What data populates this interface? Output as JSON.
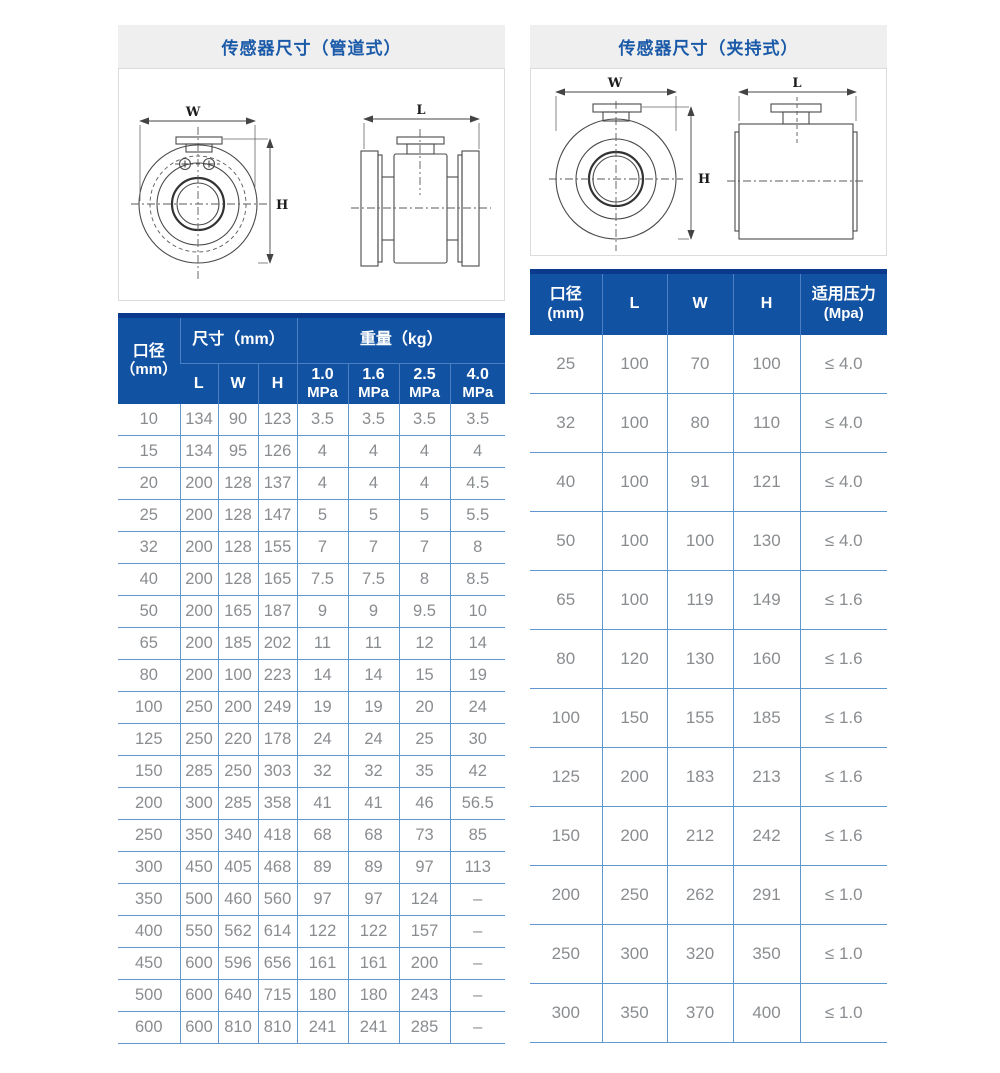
{
  "colors": {
    "header_blue": "#1252a2",
    "header_dark_strip": "#0b3a8c",
    "table_border_blue": "#6097cf",
    "header_cell_border": "#4c80c2",
    "body_text_gray": "#8a8d90",
    "title_text_blue": "#1a5aa8",
    "title_bar_bg": "#efefef",
    "drawing_line": "#4a4a4a"
  },
  "pipeline": {
    "title": "传感器尺寸（管道式）",
    "dim_labels": {
      "w": "W",
      "h": "H",
      "l": "L"
    },
    "table": {
      "h_bore_l1": "口径",
      "h_bore_l2": "（mm）",
      "h_size_group": "尺寸（mm）",
      "h_weight_group": "重量（kg）",
      "h_l": "L",
      "h_w": "W",
      "h_h": "H",
      "weight_cols": [
        {
          "v": "1.0",
          "u": "MPa"
        },
        {
          "v": "1.6",
          "u": "MPa"
        },
        {
          "v": "2.5",
          "u": "MPa"
        },
        {
          "v": "4.0",
          "u": "MPa"
        }
      ],
      "rows": [
        [
          "10",
          "134",
          "90",
          "123",
          "3.5",
          "3.5",
          "3.5",
          "3.5"
        ],
        [
          "15",
          "134",
          "95",
          "126",
          "4",
          "4",
          "4",
          "4"
        ],
        [
          "20",
          "200",
          "128",
          "137",
          "4",
          "4",
          "4",
          "4.5"
        ],
        [
          "25",
          "200",
          "128",
          "147",
          "5",
          "5",
          "5",
          "5.5"
        ],
        [
          "32",
          "200",
          "128",
          "155",
          "7",
          "7",
          "7",
          "8"
        ],
        [
          "40",
          "200",
          "128",
          "165",
          "7.5",
          "7.5",
          "8",
          "8.5"
        ],
        [
          "50",
          "200",
          "165",
          "187",
          "9",
          "9",
          "9.5",
          "10"
        ],
        [
          "65",
          "200",
          "185",
          "202",
          "11",
          "11",
          "12",
          "14"
        ],
        [
          "80",
          "200",
          "100",
          "223",
          "14",
          "14",
          "15",
          "19"
        ],
        [
          "100",
          "250",
          "200",
          "249",
          "19",
          "19",
          "20",
          "24"
        ],
        [
          "125",
          "250",
          "220",
          "178",
          "24",
          "24",
          "25",
          "30"
        ],
        [
          "150",
          "285",
          "250",
          "303",
          "32",
          "32",
          "35",
          "42"
        ],
        [
          "200",
          "300",
          "285",
          "358",
          "41",
          "41",
          "46",
          "56.5"
        ],
        [
          "250",
          "350",
          "340",
          "418",
          "68",
          "68",
          "73",
          "85"
        ],
        [
          "300",
          "450",
          "405",
          "468",
          "89",
          "89",
          "97",
          "113"
        ],
        [
          "350",
          "500",
          "460",
          "560",
          "97",
          "97",
          "124",
          "–"
        ],
        [
          "400",
          "550",
          "562",
          "614",
          "122",
          "122",
          "157",
          "–"
        ],
        [
          "450",
          "600",
          "596",
          "656",
          "161",
          "161",
          "200",
          "–"
        ],
        [
          "500",
          "600",
          "640",
          "715",
          "180",
          "180",
          "243",
          "–"
        ],
        [
          "600",
          "600",
          "810",
          "810",
          "241",
          "241",
          "285",
          "–"
        ]
      ]
    }
  },
  "clamp": {
    "title": "传感器尺寸（夹持式）",
    "dim_labels": {
      "w": "W",
      "h": "H",
      "l": "L"
    },
    "table": {
      "h_bore_l1": "口径",
      "h_bore_l2": "(mm)",
      "h_l": "L",
      "h_w": "W",
      "h_h": "H",
      "h_pressure_l1": "适用压力",
      "h_pressure_l2": "(Mpa)",
      "rows": [
        [
          "25",
          "100",
          "70",
          "100",
          "≤ 4.0"
        ],
        [
          "32",
          "100",
          "80",
          "110",
          "≤ 4.0"
        ],
        [
          "40",
          "100",
          "91",
          "121",
          "≤ 4.0"
        ],
        [
          "50",
          "100",
          "100",
          "130",
          "≤ 4.0"
        ],
        [
          "65",
          "100",
          "119",
          "149",
          "≤ 1.6"
        ],
        [
          "80",
          "120",
          "130",
          "160",
          "≤ 1.6"
        ],
        [
          "100",
          "150",
          "155",
          "185",
          "≤ 1.6"
        ],
        [
          "125",
          "200",
          "183",
          "213",
          "≤ 1.6"
        ],
        [
          "150",
          "200",
          "212",
          "242",
          "≤ 1.6"
        ],
        [
          "200",
          "250",
          "262",
          "291",
          "≤ 1.0"
        ],
        [
          "250",
          "300",
          "320",
          "350",
          "≤ 1.0"
        ],
        [
          "300",
          "350",
          "370",
          "400",
          "≤ 1.0"
        ]
      ]
    }
  }
}
